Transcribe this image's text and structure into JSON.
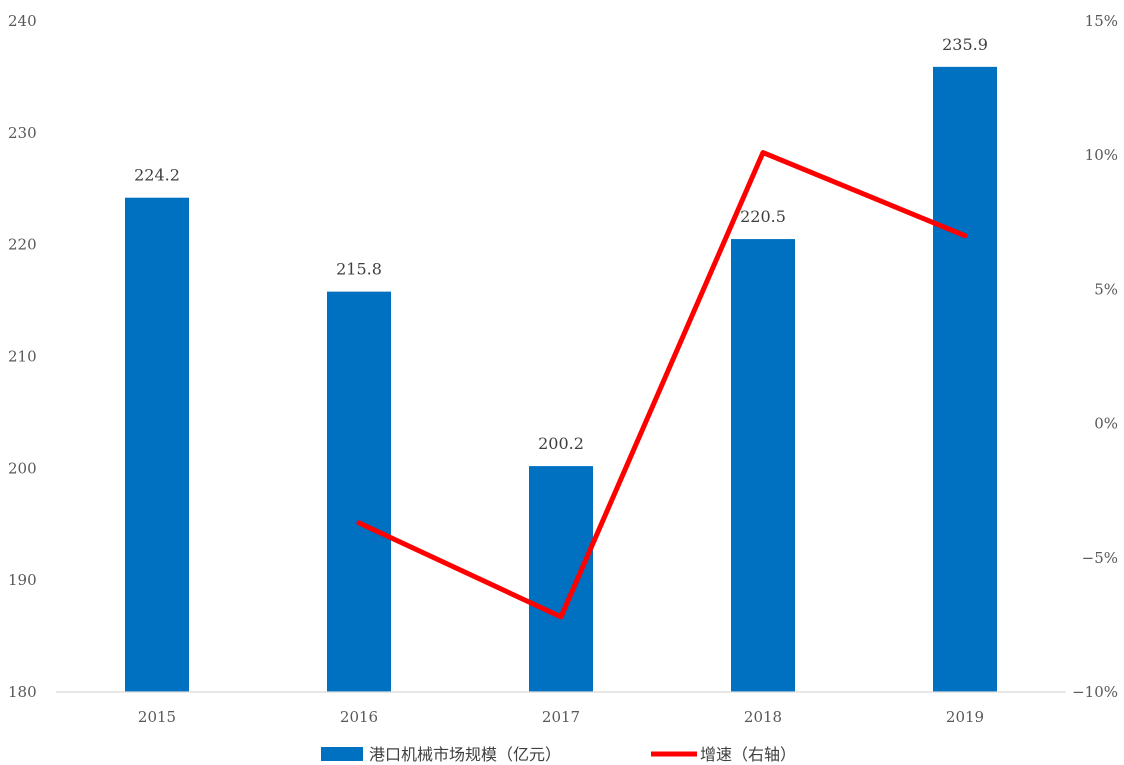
{
  "chart_data": {
    "type": "bar",
    "categories": [
      "2015",
      "2016",
      "2017",
      "2018",
      "2019"
    ],
    "series": [
      {
        "name": "港口机械市场规模（亿元）",
        "type": "bar",
        "axis": "left",
        "color": "#0070C0",
        "values": [
          224.2,
          215.8,
          200.2,
          220.5,
          235.9
        ],
        "data_labels": [
          "224.2",
          "215.8",
          "200.2",
          "220.5",
          "235.9"
        ]
      },
      {
        "name": "增速（右轴）",
        "type": "line",
        "axis": "right",
        "color": "#FF0000",
        "values": [
          null,
          -3.7,
          -7.2,
          10.1,
          7.0
        ]
      }
    ],
    "y_left": {
      "ylim": [
        180,
        240
      ],
      "ticks": [
        240,
        230,
        220,
        210,
        200,
        190,
        180
      ],
      "tick_labels": [
        "240",
        "230",
        "220",
        "210",
        "200",
        "190",
        "180"
      ]
    },
    "y_right": {
      "ylim": [
        -10,
        15
      ],
      "unit": "%",
      "ticks": [
        15,
        10,
        5,
        0,
        -5,
        -10
      ],
      "tick_labels": [
        "15%",
        "10%",
        "5%",
        "0%",
        "−5%",
        "−10%"
      ]
    },
    "grid": false,
    "legend_position": "bottom"
  }
}
